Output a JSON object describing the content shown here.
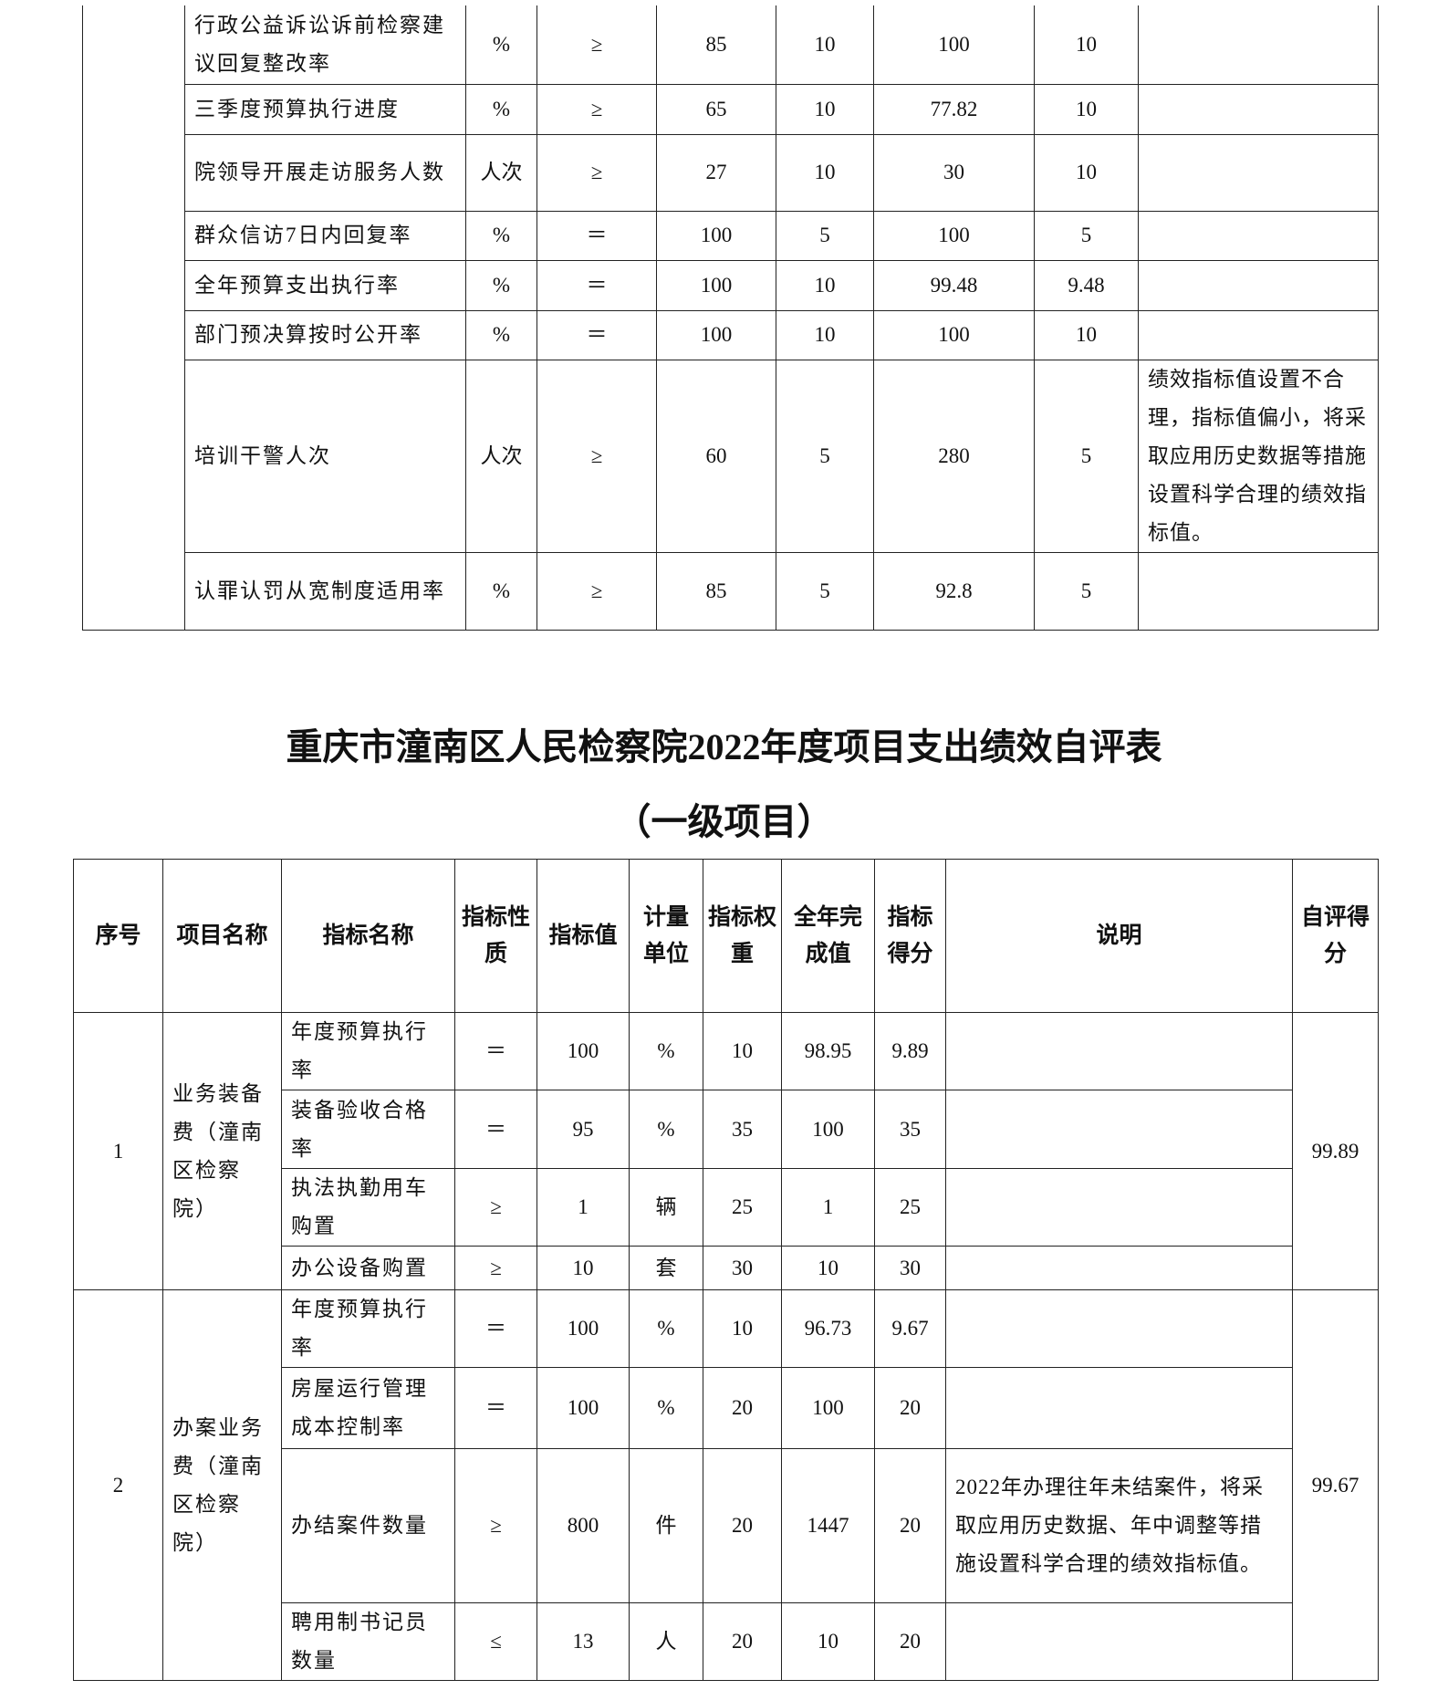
{
  "top_table": {
    "rows": [
      [
        "行政公益诉讼诉前检察建议回复整改率",
        "%",
        "≥",
        "85",
        "10",
        "100",
        "10",
        ""
      ],
      [
        "三季度预算执行进度",
        "%",
        "≥",
        "65",
        "10",
        "77.82",
        "10",
        ""
      ],
      [
        "院领导开展走访服务人数",
        "人次",
        "≥",
        "27",
        "10",
        "30",
        "10",
        ""
      ],
      [
        "群众信访7日内回复率",
        "%",
        "＝",
        "100",
        "5",
        "100",
        "5",
        ""
      ],
      [
        "全年预算支出执行率",
        "%",
        "＝",
        "100",
        "10",
        "99.48",
        "9.48",
        ""
      ],
      [
        "部门预决算按时公开率",
        "%",
        "＝",
        "100",
        "10",
        "100",
        "10",
        ""
      ],
      [
        "培训干警人次",
        "人次",
        "≥",
        "60",
        "5",
        "280",
        "5",
        "绩效指标值设置不合理，指标值偏小，将采取应用历史数据等措施设置科学合理的绩效指标值。"
      ],
      [
        "认罪认罚从宽制度适用率",
        "%",
        "≥",
        "85",
        "5",
        "92.8",
        "5",
        ""
      ]
    ]
  },
  "title": "重庆市潼南区人民检察院2022年度项目支出绩效自评表",
  "subtitle": "（一级项目）",
  "bottom_table": {
    "headers": [
      "序号",
      "项目名称",
      "指标名称",
      "指标性质",
      "指标值",
      "计量单位",
      "指标权重",
      "全年完成值",
      "指标得分",
      "说明",
      "自评得分"
    ],
    "projects": [
      {
        "no": "1",
        "name": "业务装备费（潼南区检察院）",
        "score": "99.89",
        "rows": [
          [
            "年度预算执行率",
            "＝",
            "100",
            "%",
            "10",
            "98.95",
            "9.89",
            ""
          ],
          [
            "装备验收合格率",
            "＝",
            "95",
            "%",
            "35",
            "100",
            "35",
            ""
          ],
          [
            "执法执勤用车购置",
            "≥",
            "1",
            "辆",
            "25",
            "1",
            "25",
            ""
          ],
          [
            "办公设备购置",
            "≥",
            "10",
            "套",
            "30",
            "10",
            "30",
            ""
          ]
        ]
      },
      {
        "no": "2",
        "name": "办案业务费（潼南区检察院）",
        "score": "99.67",
        "rows": [
          [
            "年度预算执行率",
            "＝",
            "100",
            "%",
            "10",
            "96.73",
            "9.67",
            ""
          ],
          [
            "房屋运行管理成本控制率",
            "＝",
            "100",
            "%",
            "20",
            "100",
            "20",
            ""
          ],
          [
            "办结案件数量",
            "≥",
            "800",
            "件",
            "20",
            "1447",
            "20",
            "2022年办理往年未结案件，将采取应用历史数据、年中调整等措施设置科学合理的绩效指标值。"
          ],
          [
            "聘用制书记员数量",
            "≤",
            "13",
            "人",
            "20",
            "10",
            "20",
            ""
          ]
        ]
      }
    ]
  }
}
